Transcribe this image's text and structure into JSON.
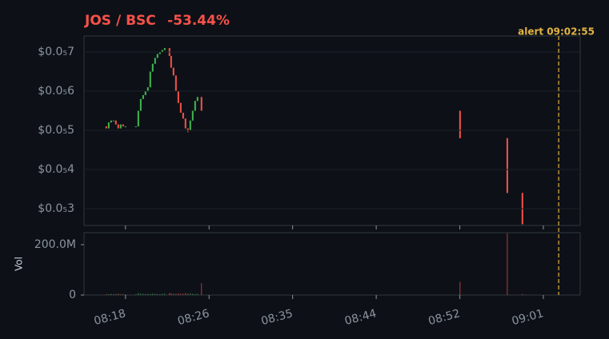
{
  "chart_data": {
    "type": "candlestick",
    "title": "JOS / BSC",
    "change": "-53.44%",
    "x": [
      496.01,
      496.26,
      496.51,
      496.76,
      497.0,
      497.25,
      497.5,
      497.75,
      498.0,
      499.08,
      499.33,
      499.58,
      499.83,
      500.07,
      500.32,
      500.57,
      500.82,
      501.07,
      501.32,
      501.57,
      501.82,
      502.07,
      502.56,
      502.73,
      502.98,
      503.23,
      503.48,
      503.73,
      503.98,
      504.22,
      504.47,
      504.72,
      504.97,
      505.22,
      505.47,
      505.88,
      532.69,
      537.59,
      539.16
    ],
    "open": [
      5.1e-07,
      5.05e-07,
      5.2e-07,
      5.25e-07,
      5.25e-07,
      5.15e-07,
      5.05e-07,
      5.15e-07,
      5.1e-07,
      5.1e-07,
      5.1e-07,
      5.5e-07,
      5.8e-07,
      5.9e-07,
      6e-07,
      6.1e-07,
      6.5e-07,
      6.7e-07,
      6.85e-07,
      6.95e-07,
      7e-07,
      7.05e-07,
      7.1e-07,
      6.9e-07,
      6.6e-07,
      6.4e-07,
      6e-07,
      5.7e-07,
      5.45e-07,
      5.3e-07,
      5.05e-07,
      5e-07,
      5.25e-07,
      5.5e-07,
      5.75e-07,
      5.85e-07,
      5.5e-07,
      4.8e-07,
      3.4e-07
    ],
    "high": [
      5.1e-07,
      5.2e-07,
      5.25e-07,
      5.25e-07,
      5.25e-07,
      5.15e-07,
      5.15e-07,
      5.15e-07,
      5.1e-07,
      5.1e-07,
      5.5e-07,
      5.8e-07,
      5.9e-07,
      6e-07,
      6.1e-07,
      6.5e-07,
      6.7e-07,
      6.85e-07,
      6.95e-07,
      7e-07,
      7.05e-07,
      7.1e-07,
      7.1e-07,
      6.9e-07,
      6.6e-07,
      6.4e-07,
      6e-07,
      5.7e-07,
      5.45e-07,
      5.3e-07,
      5.05e-07,
      5.25e-07,
      5.5e-07,
      5.75e-07,
      5.85e-07,
      5.85e-07,
      5.5e-07,
      4.8e-07,
      3.4e-07
    ],
    "low": [
      5.05e-07,
      5.05e-07,
      5.2e-07,
      5.25e-07,
      5.15e-07,
      5.05e-07,
      5.05e-07,
      5.1e-07,
      5.1e-07,
      5.1e-07,
      5.1e-07,
      5.5e-07,
      5.8e-07,
      5.9e-07,
      6e-07,
      6.1e-07,
      6.5e-07,
      6.7e-07,
      6.85e-07,
      6.95e-07,
      7e-07,
      7.05e-07,
      6.9e-07,
      6.6e-07,
      6.4e-07,
      6e-07,
      5.7e-07,
      5.45e-07,
      5.3e-07,
      5.05e-07,
      4.95e-07,
      5e-07,
      5.25e-07,
      5.5e-07,
      5.75e-07,
      5.5e-07,
      4.8e-07,
      3.4e-07,
      2.6e-07
    ],
    "close": [
      5.05e-07,
      5.2e-07,
      5.25e-07,
      5.25e-07,
      5.15e-07,
      5.05e-07,
      5.15e-07,
      5.1e-07,
      5.1e-07,
      5.1e-07,
      5.5e-07,
      5.8e-07,
      5.9e-07,
      6e-07,
      6.1e-07,
      6.5e-07,
      6.7e-07,
      6.85e-07,
      6.95e-07,
      7e-07,
      7.05e-07,
      7.1e-07,
      6.9e-07,
      6.6e-07,
      6.4e-07,
      6e-07,
      5.7e-07,
      5.45e-07,
      5.3e-07,
      5.05e-07,
      5e-07,
      5.25e-07,
      5.5e-07,
      5.75e-07,
      5.85e-07,
      5.5e-07,
      4.8e-07,
      3.4e-07,
      2.6e-07
    ],
    "volume": [
      4000000,
      3000000,
      5000000,
      3000000,
      4000000,
      6000000,
      3000000,
      4000000,
      3000000,
      3000000,
      8000000,
      6000000,
      5000000,
      4000000,
      5000000,
      4000000,
      6000000,
      5000000,
      4000000,
      3000000,
      5000000,
      6000000,
      8000000,
      7000000,
      6000000,
      5000000,
      7000000,
      6000000,
      5000000,
      8000000,
      6000000,
      7000000,
      5000000,
      4000000,
      5000000,
      47000000,
      52000000,
      245000000,
      4000000
    ],
    "up_color": "#3fb950",
    "down_color": "#f85149",
    "xlim": [
      493.7,
      545.15
    ],
    "xticks": [
      {
        "value": 498,
        "label": "08:18"
      },
      {
        "value": 506.67,
        "label": "08:26"
      },
      {
        "value": 515.33,
        "label": "08:35"
      },
      {
        "value": 524,
        "label": "08:44"
      },
      {
        "value": 532.67,
        "label": "08:52"
      },
      {
        "value": 541.33,
        "label": "09:01"
      }
    ],
    "ylim": [
      2.57e-07,
      7.41e-07
    ],
    "yticks": [
      {
        "value": 3e-07,
        "label": "$0.0₅3"
      },
      {
        "value": 4e-07,
        "label": "$0.0₅4"
      },
      {
        "value": 5e-07,
        "label": "$0.0₅5"
      },
      {
        "value": 6e-07,
        "label": "$0.0₅6"
      },
      {
        "value": 7e-07,
        "label": "$0.0₅7"
      }
    ],
    "volume_label": "Vol",
    "vlim": [
      0,
      247600000
    ],
    "vticks": [
      0,
      {
        "value": 200000000,
        "label": "200.0M"
      }
    ],
    "grid": true,
    "annotation": {
      "label": "alert 09:02:55",
      "x": 542.92,
      "color": "#e3b341"
    }
  }
}
